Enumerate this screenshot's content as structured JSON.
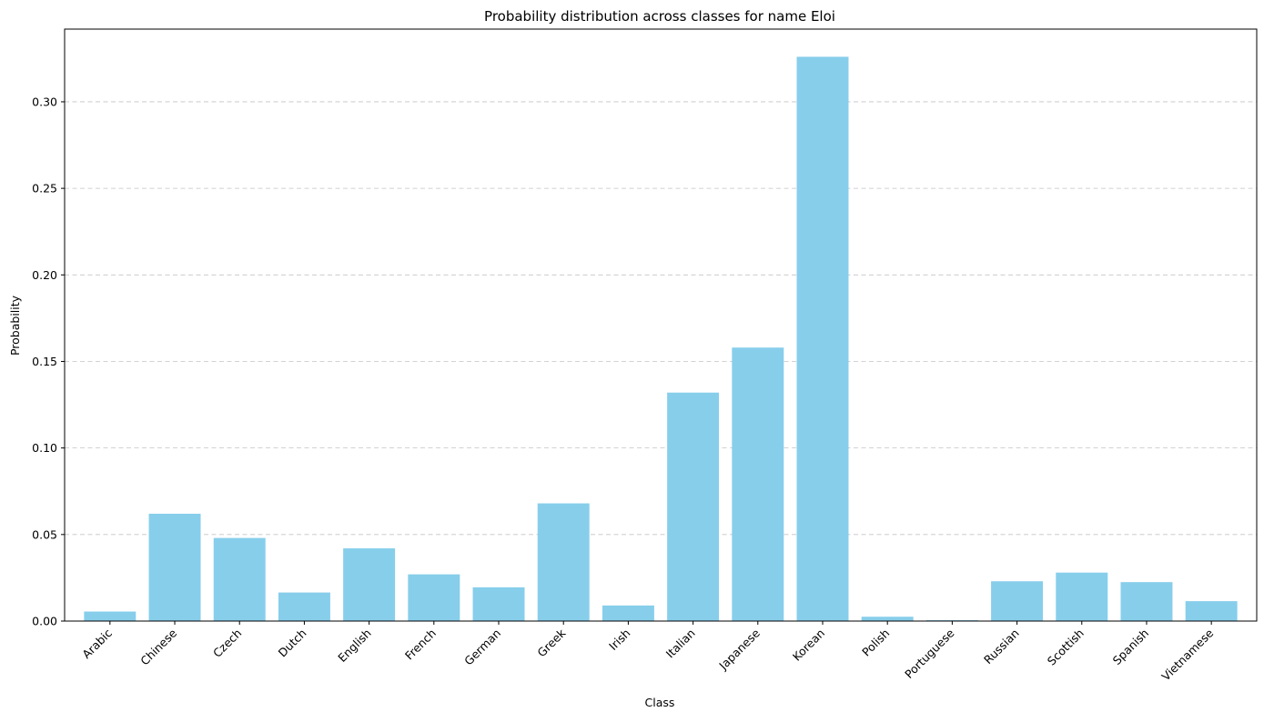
{
  "chart_data": {
    "type": "bar",
    "title": "Probability distribution across classes for name Eloi",
    "xlabel": "Class",
    "ylabel": "Probability",
    "categories": [
      "Arabic",
      "Chinese",
      "Czech",
      "Dutch",
      "English",
      "French",
      "German",
      "Greek",
      "Irish",
      "Italian",
      "Japanese",
      "Korean",
      "Polish",
      "Portuguese",
      "Russian",
      "Scottish",
      "Spanish",
      "Vietnamese"
    ],
    "values": [
      0.0055,
      0.062,
      0.048,
      0.0165,
      0.042,
      0.027,
      0.0195,
      0.068,
      0.009,
      0.132,
      0.158,
      0.326,
      0.0025,
      0.0005,
      0.023,
      0.028,
      0.0225,
      0.0115
    ],
    "ylim": [
      0,
      0.342
    ],
    "yticks": [
      0.0,
      0.05,
      0.1,
      0.15,
      0.2,
      0.25,
      0.3
    ],
    "ytick_labels": [
      "0.00",
      "0.05",
      "0.10",
      "0.15",
      "0.20",
      "0.25",
      "0.30"
    ],
    "grid": "y-dashed",
    "bar_color": "#87ceeb",
    "grid_color": "#b0b0b0"
  }
}
